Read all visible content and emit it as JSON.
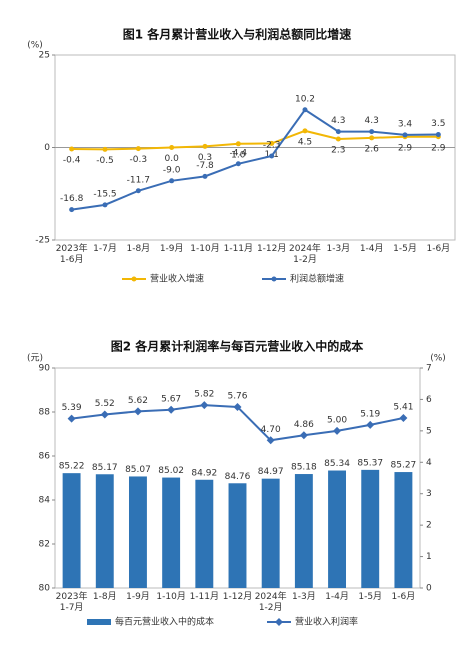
{
  "chart_data": [
    {
      "type": "line",
      "title": "图1  各月累计营业收入与利润总额同比增速",
      "y_unit": "(%)",
      "categories": [
        "2023年\n1-6月",
        "1-7月",
        "1-8月",
        "1-9月",
        "1-10月",
        "1-11月",
        "1-12月",
        "2024年\n1-2月",
        "1-3月",
        "1-4月",
        "1-5月",
        "1-6月"
      ],
      "ylim": [
        -25,
        25
      ],
      "yticks": [
        -25,
        0,
        25
      ],
      "grid": false,
      "series": [
        {
          "name": "营业收入增速",
          "color": "#f2b705",
          "type": "line",
          "values": [
            -0.4,
            -0.5,
            -0.3,
            0.0,
            0.3,
            1.0,
            1.1,
            4.5,
            2.3,
            2.6,
            2.9,
            2.9
          ],
          "value_labels": [
            "-0.4",
            "-0.5",
            "-0.3",
            "0.0",
            "0.3",
            "1.0",
            "1.1",
            "4.5",
            "2.3",
            "2.6",
            "2.9",
            "2.9"
          ]
        },
        {
          "name": "利润总额增速",
          "color": "#3a6db5",
          "type": "line",
          "values": [
            -16.8,
            -15.5,
            -11.7,
            -9.0,
            -7.8,
            -4.4,
            -2.3,
            10.2,
            4.3,
            4.3,
            3.4,
            3.5
          ],
          "value_labels": [
            "-16.8",
            "-15.5",
            "-11.7",
            "-9.0",
            "-7.8",
            "-4.4",
            "-2.3",
            "10.2",
            "4.3",
            "4.3",
            "3.4",
            "3.5"
          ]
        }
      ]
    },
    {
      "type": "bar",
      "title": "图2  各月累计利润率与每百元营业收入中的成本",
      "y_unit": "(元)",
      "y2_unit": "(%)",
      "categories": [
        "2023年\n1-7月",
        "1-8月",
        "1-9月",
        "1-10月",
        "1-11月",
        "1-12月",
        "2024年\n1-2月",
        "1-3月",
        "1-4月",
        "1-5月",
        "1-6月"
      ],
      "ylim": [
        80,
        90
      ],
      "yticks": [
        80,
        82,
        84,
        86,
        88,
        90
      ],
      "y2lim": [
        0,
        7
      ],
      "y2ticks": [
        0,
        1,
        2,
        3,
        4,
        5,
        6,
        7
      ],
      "grid": false,
      "series": [
        {
          "name": "每百元营业收入中的成本",
          "color": "#2e74b5",
          "type": "bar",
          "values": [
            85.22,
            85.17,
            85.07,
            85.02,
            84.92,
            84.76,
            84.97,
            85.18,
            85.34,
            85.37,
            85.27
          ]
        },
        {
          "name": "营业收入利润率",
          "color": "#3a6db5",
          "type": "line",
          "axis": "y2",
          "values": [
            5.39,
            5.52,
            5.62,
            5.67,
            5.82,
            5.76,
            4.7,
            4.86,
            5.0,
            5.19,
            5.41
          ],
          "value_labels": [
            "5.39",
            "5.52",
            "5.62",
            "5.67",
            "5.82",
            "5.76",
            "4.70",
            "4.86",
            "5.00",
            "5.19",
            "5.41"
          ]
        }
      ]
    }
  ]
}
